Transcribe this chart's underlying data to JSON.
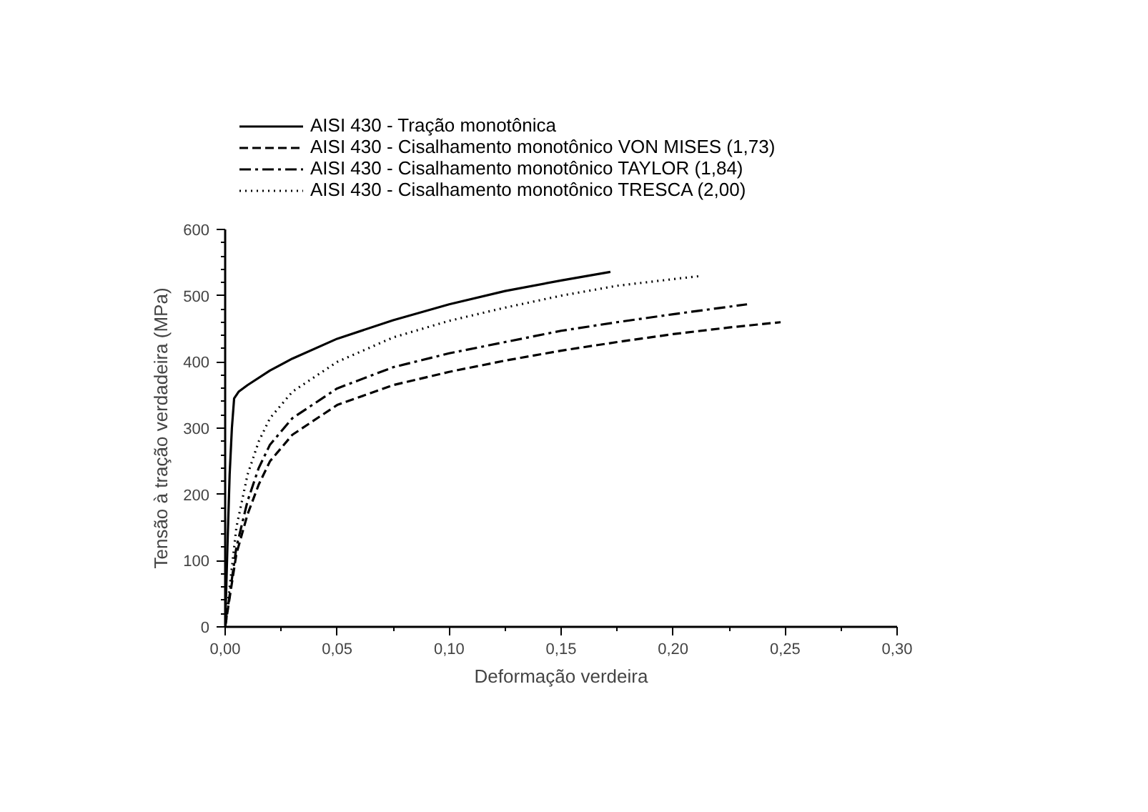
{
  "chart_data": {
    "type": "line",
    "xlabel": "Deformação verdeira",
    "ylabel": "Tensão à tração verdadeira (MPa)",
    "xlim": [
      0,
      0.3
    ],
    "ylim": [
      0,
      600
    ],
    "xticks": [
      {
        "value": 0,
        "label": "0,00"
      },
      {
        "value": 0.05,
        "label": "0,05"
      },
      {
        "value": 0.1,
        "label": "0,10"
      },
      {
        "value": 0.15,
        "label": "0,15"
      },
      {
        "value": 0.2,
        "label": "0,20"
      },
      {
        "value": 0.25,
        "label": "0,25"
      },
      {
        "value": 0.3,
        "label": "0,30"
      }
    ],
    "yticks": [
      0,
      100,
      200,
      300,
      400,
      500,
      600
    ],
    "grid": false,
    "legend": "top left",
    "marker": "none",
    "series": [
      {
        "name": "AISI 430 - Tração monotônica",
        "color": "#000000",
        "line_style": "solid",
        "x": [
          0,
          0.001,
          0.002,
          0.003,
          0.004,
          0.006,
          0.01,
          0.02,
          0.03,
          0.05,
          0.075,
          0.1,
          0.125,
          0.15,
          0.172
        ],
        "values": [
          0,
          120,
          230,
          300,
          345,
          355,
          365,
          387,
          405,
          435,
          463,
          487,
          507,
          523,
          536
        ]
      },
      {
        "name": "AISI 430 - Cisalhamento monotônico VON MISES (1,73)",
        "color": "#000000",
        "line_style": "dashed",
        "x": [
          0,
          0.005,
          0.01,
          0.015,
          0.02,
          0.03,
          0.05,
          0.075,
          0.1,
          0.125,
          0.15,
          0.175,
          0.2,
          0.225,
          0.248
        ],
        "values": [
          0,
          110,
          170,
          215,
          250,
          290,
          335,
          365,
          385,
          402,
          417,
          430,
          442,
          452,
          460
        ]
      },
      {
        "name": "AISI 430 - Cisalhamento monotônico TAYLOR (1,84)",
        "color": "#000000",
        "line_style": "dashdot",
        "x": [
          0,
          0.005,
          0.01,
          0.015,
          0.02,
          0.03,
          0.05,
          0.075,
          0.1,
          0.125,
          0.15,
          0.175,
          0.2,
          0.233
        ],
        "values": [
          0,
          120,
          190,
          240,
          275,
          315,
          360,
          392,
          413,
          430,
          447,
          460,
          472,
          487
        ]
      },
      {
        "name": "AISI 430 - Cisalhamento monotônico TRESCA (2,00)",
        "color": "#000000",
        "line_style": "dotted",
        "x": [
          0,
          0.005,
          0.01,
          0.015,
          0.02,
          0.03,
          0.05,
          0.075,
          0.1,
          0.125,
          0.15,
          0.175,
          0.2,
          0.213
        ],
        "values": [
          0,
          150,
          230,
          280,
          315,
          355,
          400,
          437,
          462,
          482,
          500,
          515,
          525,
          530
        ]
      }
    ]
  }
}
